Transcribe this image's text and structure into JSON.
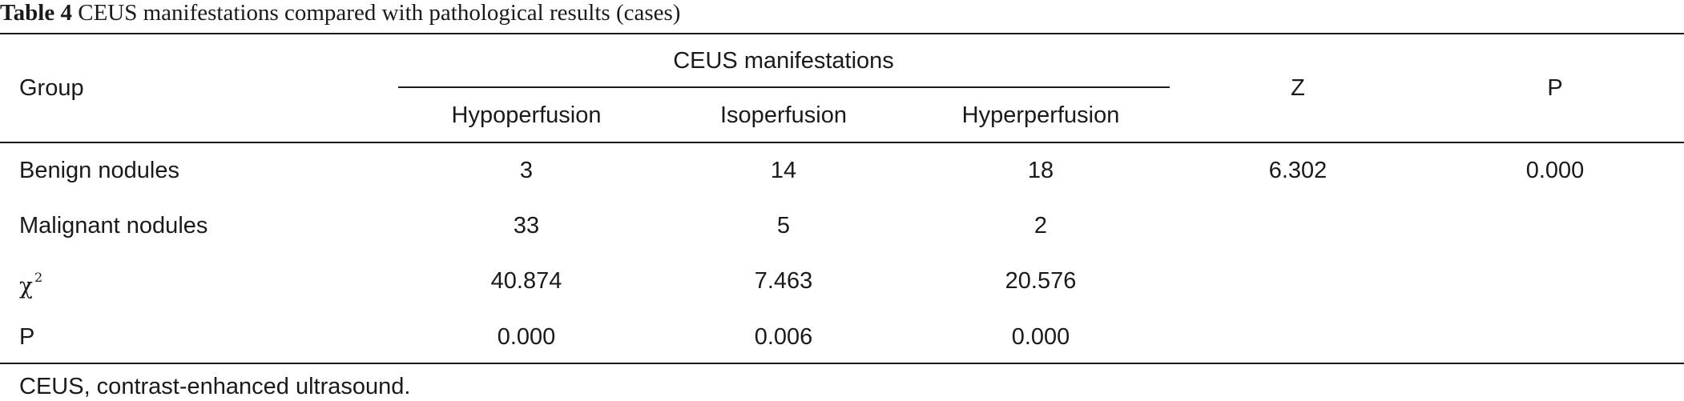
{
  "caption": {
    "label": "Table 4",
    "text": "CEUS manifestations compared with pathological results (cases)"
  },
  "header": {
    "group": "Group",
    "ceus_group": "CEUS manifestations",
    "z": "Z",
    "p": "P",
    "sub": {
      "hypo": "Hypoperfusion",
      "iso": "Isoperfusion",
      "hyper": "Hyperperfusion"
    }
  },
  "rows": [
    {
      "group": "Benign nodules",
      "hypo": "3",
      "iso": "14",
      "hyper": "18",
      "z": "6.302",
      "p": "0.000"
    },
    {
      "group": "Malignant nodules",
      "hypo": "33",
      "iso": "5",
      "hyper": "2",
      "z": "",
      "p": ""
    },
    {
      "group": "χ",
      "group_sup": "2",
      "hypo": "40.874",
      "iso": "7.463",
      "hyper": "20.576",
      "z": "",
      "p": ""
    },
    {
      "group": "P",
      "hypo": "0.000",
      "iso": "0.006",
      "hyper": "0.000",
      "z": "",
      "p": ""
    }
  ],
  "footnote": "CEUS, contrast-enhanced ultrasound."
}
